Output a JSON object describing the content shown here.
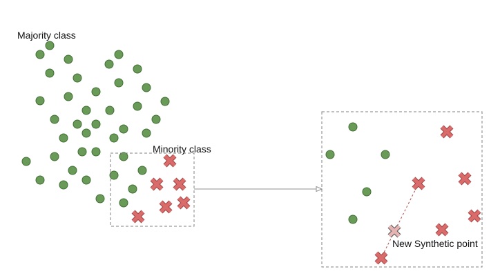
{
  "labels": {
    "majority": "Majority class",
    "minority": "Minority class",
    "synthetic": "New Synthetic point"
  },
  "colors": {
    "majority_fill": "#6a9a58",
    "majority_stroke": "#3f6f34",
    "minority_fill": "#d96b6b",
    "minority_stroke": "#a04444",
    "synthetic_fill": "#e6b3b3",
    "synthetic_stroke": "#555555",
    "box_stroke": "#808080",
    "arrow_stroke": "#909090",
    "dashed_line": "#b05050"
  },
  "icons": {
    "majority": "circle-marker",
    "minority": "x-marker",
    "synthetic": "x-marker"
  }
}
